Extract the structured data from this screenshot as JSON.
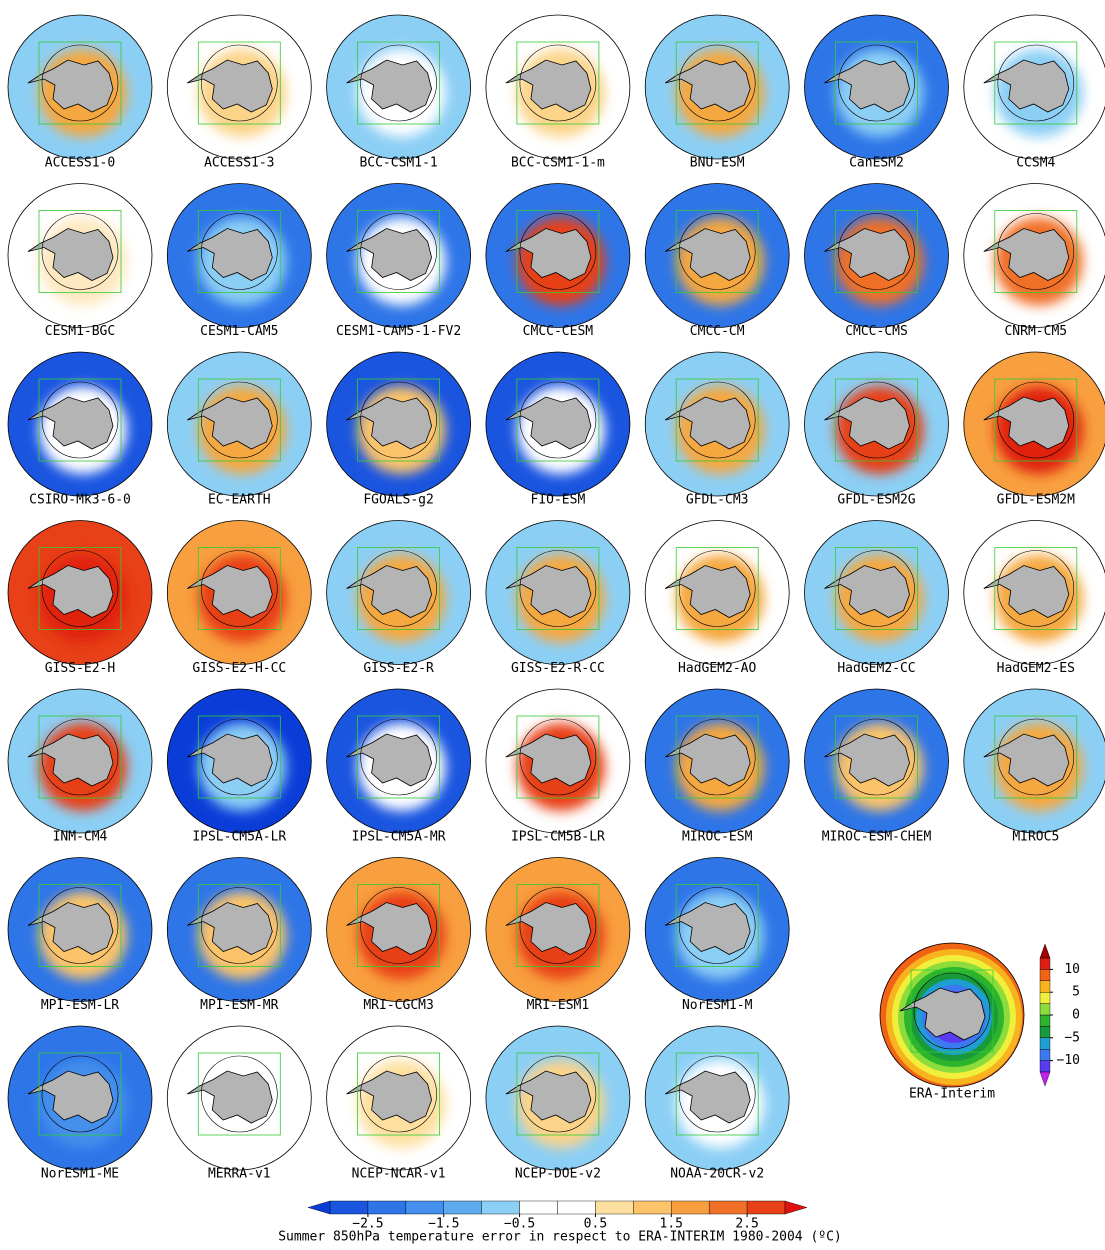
{
  "panels": [
    {
      "label": "ACCESS1-0",
      "outer": "#8ccff5",
      "inner": "#f5a840"
    },
    {
      "label": "ACCESS1-3",
      "outer": "#ffffff",
      "inner": "#fbd48a"
    },
    {
      "label": "BCC-CSM1-1",
      "outer": "#8ccff5",
      "inner": "#ffffff"
    },
    {
      "label": "BCC-CSM1-1-m",
      "outer": "#ffffff",
      "inner": "#fbd48a"
    },
    {
      "label": "BNU-ESM",
      "outer": "#8ccff5",
      "inner": "#f5a840"
    },
    {
      "label": "CanESM2",
      "outer": "#2e75e8",
      "inner": "#8ccff5"
    },
    {
      "label": "CCSM4",
      "outer": "#ffffff",
      "inner": "#8ccff5"
    },
    {
      "label": "CESM1-BGC",
      "outer": "#ffffff",
      "inner": "#fde8c0"
    },
    {
      "label": "CESM1-CAM5",
      "outer": "#2e75e8",
      "inner": "#8ccff5"
    },
    {
      "label": "CESM1-CAM5-1-FV2",
      "outer": "#2e75e8",
      "inner": "#ffffff"
    },
    {
      "label": "CMCC-CESM",
      "outer": "#2e75e8",
      "inner": "#e84018"
    },
    {
      "label": "CMCC-CM",
      "outer": "#2e75e8",
      "inner": "#f5a840"
    },
    {
      "label": "CMCC-CMS",
      "outer": "#2e75e8",
      "inner": "#f07028"
    },
    {
      "label": "CNRM-CM5",
      "outer": "#ffffff",
      "inner": "#f07028"
    },
    {
      "label": "CSIRO-Mk3-6-0",
      "outer": "#1a55e0",
      "inner": "#ffffff"
    },
    {
      "label": "EC-EARTH",
      "outer": "#8ccff5",
      "inner": "#f5a840"
    },
    {
      "label": "FGOALS-g2",
      "outer": "#1a55e0",
      "inner": "#fbc46a"
    },
    {
      "label": "FIO-ESM",
      "outer": "#1a55e0",
      "inner": "#ffffff"
    },
    {
      "label": "GFDL-CM3",
      "outer": "#8ccff5",
      "inner": "#f5a840"
    },
    {
      "label": "GFDL-ESM2G",
      "outer": "#8ccff5",
      "inner": "#e84018"
    },
    {
      "label": "GFDL-ESM2M",
      "outer": "#f8a040",
      "inner": "#e02010"
    },
    {
      "label": "GISS-E2-H",
      "outer": "#e84018",
      "inner": "#e02010"
    },
    {
      "label": "GISS-E2-H-CC",
      "outer": "#f8a040",
      "inner": "#e84018"
    },
    {
      "label": "GISS-E2-R",
      "outer": "#8ccff5",
      "inner": "#f5a840"
    },
    {
      "label": "GISS-E2-R-CC",
      "outer": "#8ccff5",
      "inner": "#f5a840"
    },
    {
      "label": "HadGEM2-AO",
      "outer": "#ffffff",
      "inner": "#f5a840"
    },
    {
      "label": "HadGEM2-CC",
      "outer": "#8ccff5",
      "inner": "#f5a840"
    },
    {
      "label": "HadGEM2-ES",
      "outer": "#ffffff",
      "inner": "#f5a840"
    },
    {
      "label": "INM-CM4",
      "outer": "#8ccff5",
      "inner": "#e84018"
    },
    {
      "label": "IPSL-CM5A-LR",
      "outer": "#0a3dd8",
      "inner": "#8ccff5"
    },
    {
      "label": "IPSL-CM5A-MR",
      "outer": "#1a55e0",
      "inner": "#ffffff"
    },
    {
      "label": "IPSL-CM5B-LR",
      "outer": "#ffffff",
      "inner": "#e84018"
    },
    {
      "label": "MIROC-ESM",
      "outer": "#2e75e8",
      "inner": "#f5a840"
    },
    {
      "label": "MIROC-ESM-CHEM",
      "outer": "#2e75e8",
      "inner": "#fbc46a"
    },
    {
      "label": "MIROC5",
      "outer": "#8ccff5",
      "inner": "#f5a840"
    },
    {
      "label": "MPI-ESM-LR",
      "outer": "#2e75e8",
      "inner": "#fbc46a"
    },
    {
      "label": "MPI-ESM-MR",
      "outer": "#2e75e8",
      "inner": "#fbc46a"
    },
    {
      "label": "MRI-CGCM3",
      "outer": "#f8a040",
      "inner": "#e84018"
    },
    {
      "label": "MRI-ESM1",
      "outer": "#f8a040",
      "inner": "#e84018"
    },
    {
      "label": "NorESM1-M",
      "outer": "#2e75e8",
      "inner": "#8ccff5"
    },
    {
      "label": "NorESM1-ME",
      "outer": "#2e75e8",
      "inner": "#4590ec"
    },
    {
      "label": "MERRA-v1",
      "outer": "#ffffff",
      "inner": "#ffffff",
      "reanalysis": true
    },
    {
      "label": "NCEP-NCAR-v1",
      "outer": "#ffffff",
      "inner": "#fde0a0",
      "reanalysis": true
    },
    {
      "label": "NCEP-DOE-v2",
      "outer": "#8ccff5",
      "inner": "#fbd48a",
      "reanalysis": true
    },
    {
      "label": "NOAA-20CR-v2",
      "outer": "#8ccff5",
      "inner": "#ffffff",
      "reanalysis": true
    }
  ],
  "reference": {
    "label": "ERA-Interim",
    "colorbar": {
      "limits": [
        -12.5,
        12.5
      ],
      "low_color": "#c020f0",
      "high_color": "#a00000",
      "colors": [
        "#5a3cf0",
        "#3c78f0",
        "#1e9ed2",
        "#189a3c",
        "#2cb42c",
        "#8cdc3c",
        "#f0f03c",
        "#f8b41e",
        "#f06414",
        "#dc1e14"
      ],
      "ticks": [
        10,
        5,
        0,
        {
          "value": -5,
          "label": "−5"
        },
        {
          "value": -10,
          "label": "−10"
        }
      ]
    }
  },
  "colorbar": {
    "limits": [
      -3,
      3
    ],
    "low_color": "#0a3dd8",
    "high_color": "#e01010",
    "colors": [
      "#1a55e0",
      "#2e75e8",
      "#4590ec",
      "#60aaf0",
      "#8ccff5",
      "#ffffff",
      "#ffffff",
      "#fde0a0",
      "#fbc46a",
      "#f8a040",
      "#f07028",
      "#e84018"
    ],
    "ticks": [
      {
        "value": -2.5,
        "label": "−2.5"
      },
      {
        "value": -1.5,
        "label": "−1.5"
      },
      {
        "value": -0.5,
        "label": "−0.5"
      },
      0.5,
      1.5,
      2.5
    ]
  },
  "caption": "Summer 850hPa temperature error in respect to ERA-INTERIM 1980-2004 (ºC)"
}
